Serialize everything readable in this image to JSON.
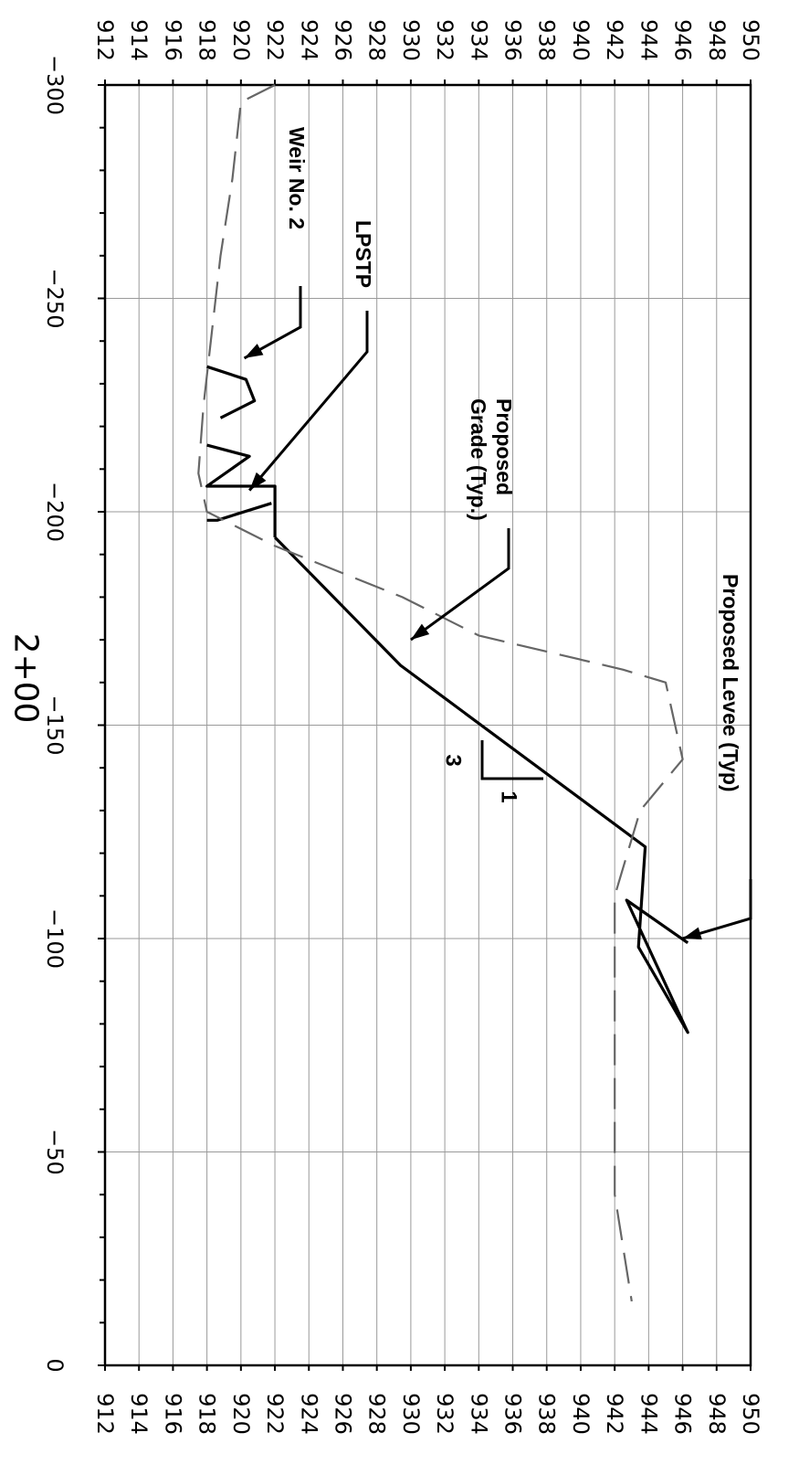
{
  "chart_data": {
    "type": "line",
    "title": "",
    "station_label": "2+00",
    "x_axis": {
      "label": "",
      "range": [
        -300,
        0
      ],
      "ticks": [
        -300,
        -250,
        -200,
        -150,
        -100,
        -50,
        0
      ],
      "tick_labels": [
        "−300",
        "−250",
        "−200",
        "−150",
        "−100",
        "−50",
        "0"
      ]
    },
    "y_axis": {
      "label": "",
      "range": [
        912,
        950
      ],
      "ticks": [
        912,
        914,
        916,
        918,
        920,
        922,
        924,
        926,
        928,
        930,
        932,
        934,
        936,
        938,
        940,
        942,
        944,
        946,
        948,
        950
      ],
      "tick_labels": [
        "912",
        "914",
        "916",
        "918",
        "920",
        "922",
        "924",
        "926",
        "928",
        "930",
        "932",
        "934",
        "936",
        "938",
        "940",
        "942",
        "944",
        "946",
        "948",
        "950"
      ]
    },
    "grid": true,
    "series": [
      {
        "style": "solid",
        "color": "#000000",
        "points": [
          [
            -194,
            922
          ],
          [
            -206,
            922
          ],
          [
            -206,
            918
          ],
          [
            -213,
            920.5
          ],
          [
            -215.6,
            918
          ]
        ]
      },
      {
        "style": "solid",
        "color": "#000000",
        "points": [
          [
            -194,
            922
          ],
          [
            -164,
            929.4
          ],
          [
            -121.5,
            943.8
          ],
          [
            -98,
            943.4
          ],
          [
            -78,
            946.3
          ],
          [
            -109,
            942.7
          ],
          [
            -99,
            946.3
          ]
        ]
      },
      {
        "style": "solid",
        "color": "#000000",
        "points": [
          [
            -202,
            921.8
          ],
          [
            -198,
            918.6
          ],
          [
            -198,
            918
          ]
        ]
      },
      {
        "style": "solid",
        "color": "#000000",
        "points": [
          [
            -222,
            918.8
          ],
          [
            -226,
            920.8
          ],
          [
            -231,
            920.3
          ],
          [
            -234,
            918
          ]
        ]
      },
      {
        "style": "dashed",
        "color": "#666666",
        "points": [
          [
            -300,
            922
          ],
          [
            -296,
            920
          ],
          [
            -278,
            919.5
          ],
          [
            -260,
            918.8
          ],
          [
            -225,
            917.8
          ],
          [
            -209,
            917.5
          ],
          [
            -200,
            918
          ],
          [
            -192,
            922
          ],
          [
            -180,
            929.5
          ],
          [
            -171,
            934
          ],
          [
            -163,
            942.5
          ],
          [
            -160,
            945
          ],
          [
            -142,
            946
          ],
          [
            -130,
            943.5
          ],
          [
            -110,
            942
          ],
          [
            -90,
            942
          ],
          [
            -60,
            942
          ],
          [
            -40,
            942
          ],
          [
            -15,
            943
          ]
        ]
      }
    ],
    "annotations": [
      {
        "text": "Proposed Levee (Typ)",
        "pointer": [
          -100,
          946
        ]
      },
      {
        "text": "Proposed Grade (Typ.)",
        "pointer": [
          -170,
          930
        ]
      },
      {
        "text": "LPSTP",
        "pointer": [
          -205,
          920.5
        ]
      },
      {
        "text": "Weir No. 2",
        "pointer": [
          -236,
          920.2
        ]
      },
      {
        "text": "slope",
        "rise": "1",
        "run": "3"
      }
    ],
    "annotation_lines": [
      [
        "Proposed Levee (Typ)"
      ],
      [
        "Proposed",
        "Grade (Typ.)"
      ],
      [
        "LPSTP"
      ],
      [
        "Weir No. 2"
      ]
    ]
  }
}
